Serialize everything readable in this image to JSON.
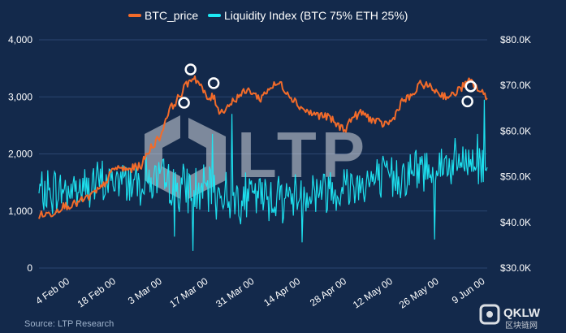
{
  "chart_data": {
    "type": "line",
    "title": "",
    "legend_position": "top-center",
    "grid": true,
    "x_axis": {
      "range": [
        "2000-01-28",
        "2000-06-12"
      ],
      "tick_labels": [
        "4 Feb 00",
        "18 Feb 00",
        "3 Mar 00",
        "17 Mar 00",
        "31 Mar 00",
        "14 Apr 00",
        "28 Apr 00",
        "12 May 00",
        "26 May 00",
        "9 Jun 00"
      ]
    },
    "y_left": {
      "ylim": [
        0,
        4000
      ],
      "tick_labels": [
        "0",
        "1,000",
        "2,000",
        "3,000",
        "4,000"
      ]
    },
    "y_right": {
      "ylim": [
        30000,
        80000
      ],
      "tick_labels": [
        "$30.0K",
        "$40.0K",
        "$50.0K",
        "$60.0K",
        "$70.0K",
        "$80.0K"
      ]
    },
    "series": [
      {
        "name": "BTC_price",
        "axis": "right",
        "color": "#f26b2a",
        "points": [
          [
            "2000-01-28",
            41500
          ],
          [
            "2000-02-01",
            42000
          ],
          [
            "2000-02-04",
            43500
          ],
          [
            "2000-02-08",
            44000
          ],
          [
            "2000-02-12",
            45500
          ],
          [
            "2000-02-16",
            47500
          ],
          [
            "2000-02-20",
            52000
          ],
          [
            "2000-02-24",
            51500
          ],
          [
            "2000-02-28",
            52500
          ],
          [
            "2000-03-02",
            56500
          ],
          [
            "2000-03-05",
            59000
          ],
          [
            "2000-03-07",
            64000
          ],
          [
            "2000-03-09",
            66000
          ],
          [
            "2000-03-11",
            68000
          ],
          [
            "2000-03-13",
            70500
          ],
          [
            "2000-03-15",
            72000
          ],
          [
            "2000-03-17",
            70000
          ],
          [
            "2000-03-19",
            67000
          ],
          [
            "2000-03-21",
            67500
          ],
          [
            "2000-03-23",
            64000
          ],
          [
            "2000-03-26",
            66000
          ],
          [
            "2000-03-29",
            68000
          ],
          [
            "2000-04-01",
            69000
          ],
          [
            "2000-04-04",
            67000
          ],
          [
            "2000-04-07",
            69500
          ],
          [
            "2000-04-10",
            70500
          ],
          [
            "2000-04-13",
            68000
          ],
          [
            "2000-04-16",
            65500
          ],
          [
            "2000-04-19",
            64000
          ],
          [
            "2000-04-22",
            63500
          ],
          [
            "2000-04-25",
            63000
          ],
          [
            "2000-04-28",
            61000
          ],
          [
            "2000-04-30",
            60500
          ],
          [
            "2000-05-02",
            63000
          ],
          [
            "2000-05-05",
            64000
          ],
          [
            "2000-05-08",
            62500
          ],
          [
            "2000-05-11",
            61500
          ],
          [
            "2000-05-14",
            62000
          ],
          [
            "2000-05-17",
            66500
          ],
          [
            "2000-05-20",
            67500
          ],
          [
            "2000-05-23",
            70500
          ],
          [
            "2000-05-26",
            69500
          ],
          [
            "2000-05-29",
            68000
          ],
          [
            "2000-06-01",
            67500
          ],
          [
            "2000-06-04",
            69500
          ],
          [
            "2000-06-07",
            71000
          ],
          [
            "2000-06-10",
            68500
          ],
          [
            "2000-06-12",
            67500
          ]
        ]
      },
      {
        "name": "Liquidity Index (BTC 75% ETH 25%)",
        "axis": "left",
        "color": "#1de9f5",
        "points": [
          [
            "2000-01-28",
            1300
          ],
          [
            "2000-02-03",
            1350
          ],
          [
            "2000-02-10",
            1400
          ],
          [
            "2000-02-17",
            1500
          ],
          [
            "2000-02-24",
            1550
          ],
          [
            "2000-03-02",
            1550
          ],
          [
            "2000-03-09",
            1450
          ],
          [
            "2000-03-16",
            1350
          ],
          [
            "2000-03-23",
            1300
          ],
          [
            "2000-03-30",
            1250
          ],
          [
            "2000-04-06",
            1250
          ],
          [
            "2000-04-13",
            1250
          ],
          [
            "2000-04-20",
            1350
          ],
          [
            "2000-04-27",
            1400
          ],
          [
            "2000-05-04",
            1500
          ],
          [
            "2000-05-11",
            1550
          ],
          [
            "2000-05-18",
            1650
          ],
          [
            "2000-05-25",
            1750
          ],
          [
            "2000-06-01",
            1800
          ],
          [
            "2000-06-08",
            1850
          ],
          [
            "2000-06-12",
            1700
          ]
        ]
      }
    ],
    "annotations": [
      {
        "marker": "circle",
        "date": "2000-03-12",
        "axis": "right",
        "value": 66200
      },
      {
        "marker": "circle",
        "date": "2000-03-14",
        "axis": "right",
        "value": 73500
      },
      {
        "marker": "circle",
        "date": "2000-03-21",
        "axis": "right",
        "value": 70500
      },
      {
        "marker": "circle",
        "date": "2000-06-06",
        "axis": "right",
        "value": 66500
      },
      {
        "marker": "circle",
        "date": "2000-06-07",
        "axis": "right",
        "value": 69800
      }
    ],
    "source": "Source: LTP Research",
    "watermarks": [
      "LTP",
      "QKLW",
      "区块链网"
    ]
  }
}
